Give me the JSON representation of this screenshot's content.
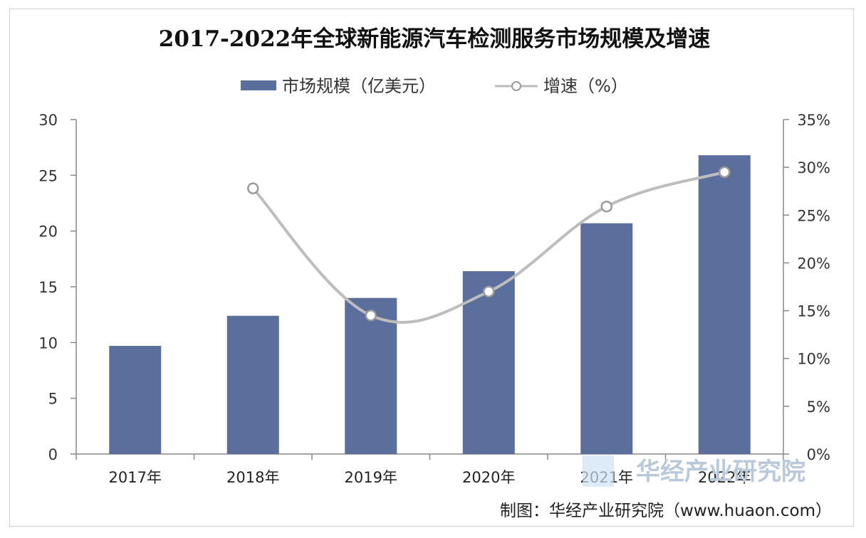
{
  "chart_data": {
    "type": "bar",
    "title": "2017-2022年全球新能源汽车检测服务市场规模及增速",
    "categories": [
      "2017年",
      "2018年",
      "2019年",
      "2020年",
      "2021年",
      "2022年"
    ],
    "series": [
      {
        "name": "市场规模（亿美元）",
        "type": "bar",
        "axis": "left",
        "color": "#5b6f9c",
        "values": [
          9.7,
          12.4,
          14.0,
          16.4,
          20.7,
          26.8
        ]
      },
      {
        "name": "增速（%）",
        "type": "line",
        "axis": "right",
        "color": "#bdbdbd",
        "values": [
          null,
          27.8,
          14.5,
          17.0,
          25.9,
          29.5
        ]
      }
    ],
    "y_left": {
      "min": 0,
      "max": 30,
      "ticks": [
        "0",
        "5",
        "10",
        "15",
        "20",
        "25",
        "30"
      ]
    },
    "y_right": {
      "min": 0,
      "max": 35,
      "ticks": [
        "0%",
        "5%",
        "10%",
        "15%",
        "20%",
        "25%",
        "30%",
        "35%"
      ]
    },
    "grid": false,
    "legend_position": "top-center"
  },
  "source": "制图：华经产业研究院（www.huaon.com）",
  "watermark": {
    "text": "华经产业研究院",
    "url": "www.huaon.com"
  }
}
